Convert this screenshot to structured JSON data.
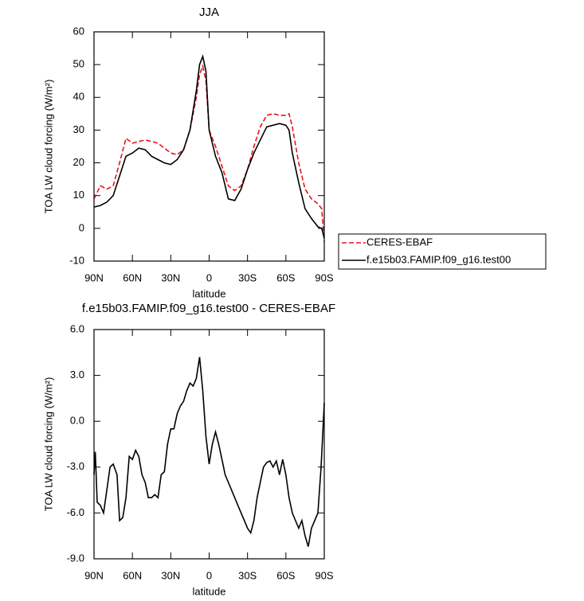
{
  "chart_data": [
    {
      "type": "line",
      "title": "JJA",
      "xlabel": "latitude",
      "ylabel": "TOA LW cloud forcing (W/m²)",
      "x": [
        90,
        85,
        80,
        75,
        70,
        65,
        60,
        55,
        50,
        45,
        40,
        35,
        30,
        25,
        20,
        15,
        10,
        7.5,
        5,
        2.5,
        0,
        -5,
        -10,
        -15,
        -20,
        -25,
        -30,
        -35,
        -40,
        -45,
        -50,
        -55,
        -60,
        -62.5,
        -65,
        -70,
        -75,
        -80,
        -85,
        -88,
        -90
      ],
      "series": [
        {
          "name": "CERES-EBAF",
          "color": "#e8141a",
          "dash": true,
          "values": [
            9,
            13,
            12,
            13,
            20,
            27.5,
            26,
            26.5,
            27,
            26.5,
            26,
            24.5,
            23,
            22.5,
            24,
            30,
            40,
            47,
            49.5,
            45,
            30,
            25,
            19,
            13,
            11.5,
            13,
            18,
            25,
            31,
            34.5,
            35,
            34.5,
            34.5,
            35,
            31,
            20,
            12,
            9,
            7.5,
            6,
            -4
          ]
        },
        {
          "name": "f.e15b03.FAMIP.f09_g16.test00",
          "color": "#000000",
          "dash": false,
          "values": [
            6.5,
            7,
            8,
            10,
            16,
            22,
            23,
            24.5,
            24,
            22,
            21,
            20,
            19.5,
            21,
            24,
            30,
            42,
            50,
            52.5,
            48,
            30,
            22,
            17,
            9,
            8.5,
            12,
            18,
            23,
            27,
            31,
            31.5,
            32,
            31.5,
            30,
            23,
            14,
            6,
            3,
            0.5,
            0,
            -3
          ]
        }
      ],
      "xlim": [
        90,
        -90
      ],
      "xticks": [
        {
          "value": 90,
          "label": "90N"
        },
        {
          "value": 60,
          "label": "60N"
        },
        {
          "value": 30,
          "label": "30N"
        },
        0,
        {
          "value": -30,
          "label": "30S"
        },
        {
          "value": -60,
          "label": "60S"
        },
        {
          "value": -90,
          "label": "90S"
        }
      ],
      "ylim": [
        -10,
        60
      ],
      "yticks": [
        -10,
        0,
        10,
        20,
        30,
        40,
        50,
        60
      ],
      "legend": "right"
    },
    {
      "type": "line",
      "title": "f.e15b03.FAMIP.f09_g16.test00 - CERES-EBAF",
      "xlabel": "latitude",
      "ylabel": "TOA LW cloud forcing (W/m²)",
      "x": [
        90,
        89,
        87.5,
        85,
        82.5,
        80,
        77.5,
        75,
        72,
        70,
        67.5,
        65,
        62.5,
        60,
        57.5,
        55,
        52.5,
        50,
        47.5,
        45,
        42.5,
        40,
        37.5,
        35,
        32.5,
        30,
        27.5,
        25,
        22.5,
        20,
        17.5,
        15,
        12.5,
        10,
        7.5,
        5,
        2.5,
        0,
        -2.5,
        -5,
        -7.5,
        -10,
        -12.5,
        -15,
        -17.5,
        -20,
        -22.5,
        -25,
        -27.5,
        -30,
        -32.5,
        -35,
        -37.5,
        -40,
        -42.5,
        -45,
        -47.5,
        -50,
        -52.5,
        -55,
        -57.5,
        -60,
        -62.5,
        -65,
        -67.5,
        -70,
        -72.5,
        -75,
        -77.5,
        -80,
        -82.5,
        -85,
        -87.5,
        -90
      ],
      "values": [
        -3.5,
        -2,
        -5.3,
        -5.5,
        -6,
        -4.5,
        -3,
        -2.8,
        -3.5,
        -6.5,
        -6.3,
        -5,
        -2.3,
        -2.5,
        -1.9,
        -2.3,
        -3.5,
        -4,
        -5,
        -5,
        -4.8,
        -5,
        -3.5,
        -3.3,
        -1.5,
        -0.5,
        -0.5,
        0.5,
        1,
        1.3,
        2,
        2.5,
        2.3,
        2.8,
        4.2,
        2,
        -1,
        -2.8,
        -1.5,
        -0.7,
        -1.5,
        -2.5,
        -3.5,
        -4,
        -4.5,
        -5,
        -5.5,
        -6,
        -6.5,
        -7,
        -7.3,
        -6.5,
        -5,
        -4,
        -3,
        -2.7,
        -2.6,
        -3,
        -2.6,
        -3.5,
        -2.5,
        -3.5,
        -5,
        -6,
        -6.5,
        -7,
        -6.5,
        -7.5,
        -8.2,
        -7,
        -6.5,
        -6,
        -3,
        1.2
      ],
      "color": "#000000",
      "xlim": [
        90,
        -90
      ],
      "xticks": [
        {
          "value": 90,
          "label": "90N"
        },
        {
          "value": 60,
          "label": "60N"
        },
        {
          "value": 30,
          "label": "30N"
        },
        0,
        {
          "value": -30,
          "label": "30S"
        },
        {
          "value": -60,
          "label": "60S"
        },
        {
          "value": -90,
          "label": "90S"
        }
      ],
      "ylim": [
        -9,
        6
      ],
      "yticks": [
        {
          "value": -9,
          "label": "-9.0"
        },
        {
          "value": -6,
          "label": "-6.0"
        },
        {
          "value": -3,
          "label": "-3.0"
        },
        {
          "value": 0,
          "label": "0.0"
        },
        {
          "value": 3,
          "label": "3.0"
        },
        {
          "value": 6,
          "label": "6.0"
        }
      ]
    }
  ]
}
